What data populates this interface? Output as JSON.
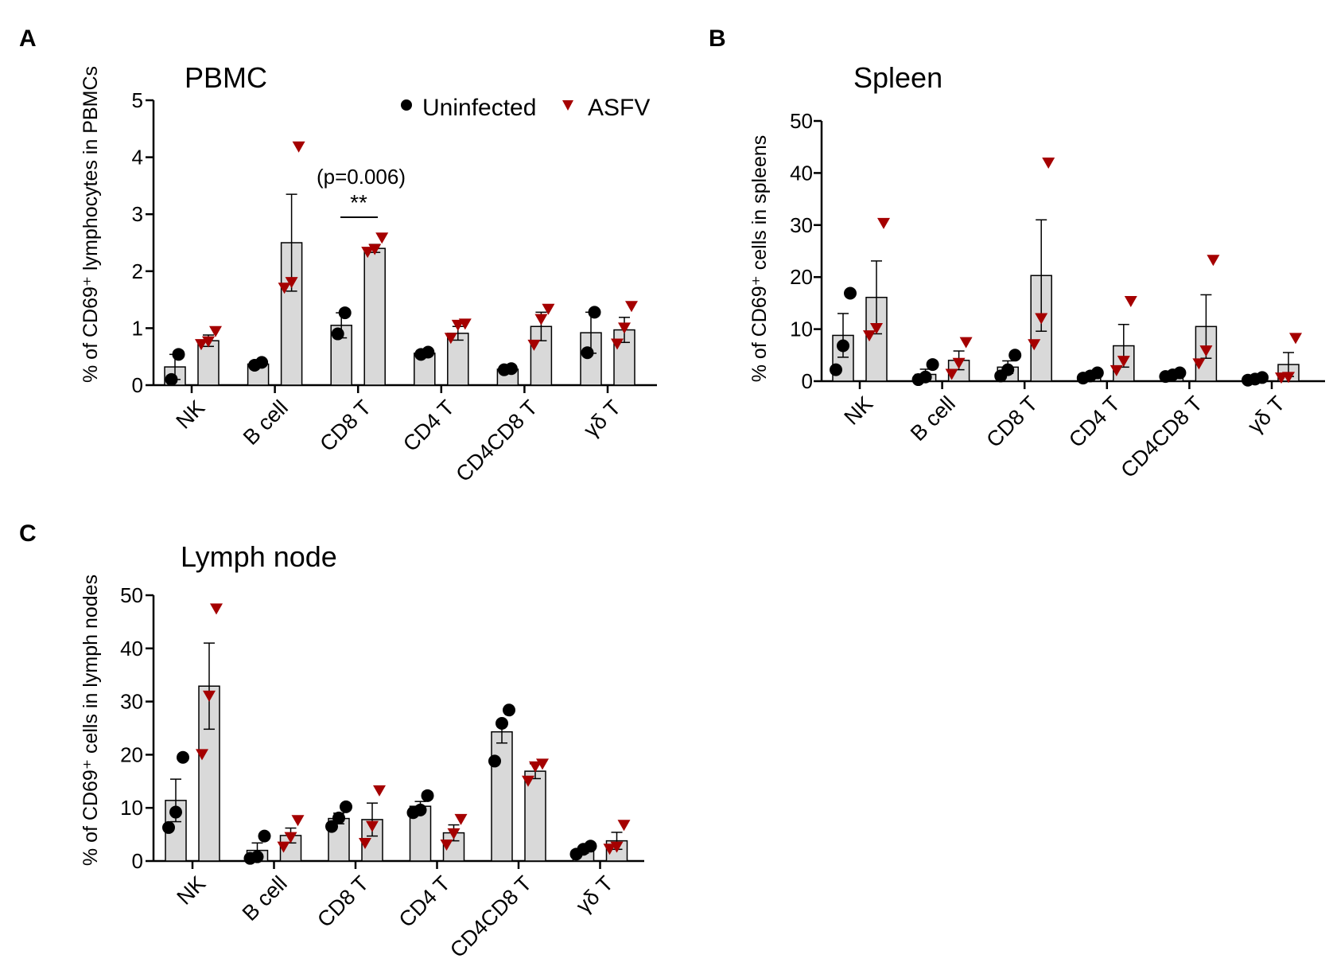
{
  "figure": {
    "legend": {
      "uninfected": "Uninfected",
      "asfv": "ASFV"
    },
    "colors": {
      "uninfected": "#000000",
      "asfv": "#a50000",
      "bar": "#d9d9d9",
      "axis": "#000000"
    },
    "marker_shapes": {
      "uninfected": "circle",
      "asfv": "triangle-down"
    }
  },
  "chart_data": [
    {
      "panel": "A",
      "type": "bar",
      "title": "PBMC",
      "ylabel": "% of CD69⁺ lymphocytes in PBMCs",
      "ylim": [
        0,
        5
      ],
      "yticks": [
        "0",
        "1",
        "2",
        "3",
        "4",
        "5"
      ],
      "categories": [
        "NK",
        "B cell",
        "CD8 T",
        "CD4 T",
        "CD4CD8 T",
        "γδ T"
      ],
      "series": [
        {
          "name": "Uninfected",
          "means": [
            0.32,
            0.37,
            1.05,
            0.56,
            0.28,
            0.92
          ],
          "sem": [
            0.22,
            0.04,
            0.22,
            0.04,
            0.02,
            0.36
          ],
          "points": [
            [
              0.1,
              0.54
            ],
            [
              0.35,
              0.4
            ],
            [
              0.9,
              1.27
            ],
            [
              0.54,
              0.58
            ],
            [
              0.27,
              0.29
            ],
            [
              0.57,
              1.28
            ]
          ]
        },
        {
          "name": "ASFV",
          "means": [
            0.78,
            2.5,
            2.4,
            0.91,
            1.03,
            0.97
          ],
          "sem": [
            0.1,
            0.85,
            0.07,
            0.12,
            0.25,
            0.22
          ],
          "points": [
            [
              0.71,
              0.76,
              0.94
            ],
            [
              1.7,
              1.8,
              4.18
            ],
            [
              2.33,
              2.38,
              2.58
            ],
            [
              0.82,
              1.05,
              1.07
            ],
            [
              0.7,
              1.15,
              1.33
            ],
            [
              0.72,
              1.0,
              1.38
            ]
          ]
        }
      ],
      "annotations": {
        "pvalue": "(p=0.006)",
        "stars": "**",
        "category": "CD8 T"
      }
    },
    {
      "panel": "B",
      "type": "bar",
      "title": "Spleen",
      "ylabel": "% of CD69⁺ cells in spleens",
      "ylim": [
        0,
        50
      ],
      "yticks": [
        "0",
        "10",
        "20",
        "30",
        "40",
        "50"
      ],
      "categories": [
        "NK",
        "B cell",
        "CD8 T",
        "CD4 T",
        "CD4CD8 T",
        "γδ T"
      ],
      "series": [
        {
          "name": "Uninfected",
          "means": [
            8.8,
            1.3,
            2.7,
            1.0,
            1.2,
            0.5
          ],
          "sem": [
            4.2,
            1.0,
            1.2,
            0.4,
            0.3,
            0.2
          ],
          "points": [
            [
              2.2,
              6.8,
              16.9
            ],
            [
              0.3,
              0.8,
              3.2
            ],
            [
              1.0,
              2.2,
              5.0
            ],
            [
              0.6,
              1.0,
              1.6
            ],
            [
              0.9,
              1.2,
              1.6
            ],
            [
              0.2,
              0.4,
              0.7
            ]
          ]
        },
        {
          "name": "ASFV",
          "means": [
            16.1,
            4.0,
            20.3,
            6.8,
            10.5,
            3.2
          ],
          "sem": [
            7.0,
            1.8,
            10.7,
            4.1,
            6.1,
            2.3
          ],
          "points": [
            [
              8.7,
              10.1,
              30.3
            ],
            [
              1.3,
              3.4,
              7.4
            ],
            [
              7.0,
              12.0,
              41.9
            ],
            [
              2.0,
              3.8,
              15.3
            ],
            [
              3.3,
              5.8,
              23.2
            ],
            [
              0.6,
              0.7,
              8.2
            ]
          ]
        }
      ]
    },
    {
      "panel": "C",
      "type": "bar",
      "title": "Lymph node",
      "ylabel": "% of CD69⁺ cells in lymph nodes",
      "ylim": [
        0,
        50
      ],
      "yticks": [
        "0",
        "10",
        "20",
        "30",
        "40",
        "50"
      ],
      "categories": [
        "NK",
        "B cell",
        "CD8 T",
        "CD4 T",
        "CD4CD8 T",
        "γδ T"
      ],
      "series": [
        {
          "name": "Uninfected",
          "means": [
            11.4,
            2.0,
            8.0,
            10.3,
            24.3,
            2.1
          ],
          "sem": [
            4.0,
            1.4,
            1.0,
            0.9,
            2.1,
            0.6
          ],
          "points": [
            [
              6.3,
              9.2,
              19.5
            ],
            [
              0.5,
              0.8,
              4.7
            ],
            [
              6.5,
              8.1,
              10.2
            ],
            [
              9.1,
              9.6,
              12.3
            ],
            [
              18.8,
              25.9,
              28.4
            ],
            [
              1.3,
              2.2,
              2.8
            ]
          ]
        },
        {
          "name": "ASFV",
          "means": [
            32.9,
            4.8,
            7.8,
            5.3,
            16.9,
            3.8
          ],
          "sem": [
            8.1,
            1.4,
            3.1,
            1.5,
            1.4,
            1.6
          ],
          "points": [
            [
              20.0,
              31.0,
              47.4
            ],
            [
              2.6,
              4.4,
              7.6
            ],
            [
              3.3,
              6.5,
              13.2
            ],
            [
              3.0,
              5.1,
              7.8
            ],
            [
              15.0,
              17.7,
              18.2
            ],
            [
              2.2,
              2.6,
              6.7
            ]
          ]
        }
      ]
    }
  ]
}
